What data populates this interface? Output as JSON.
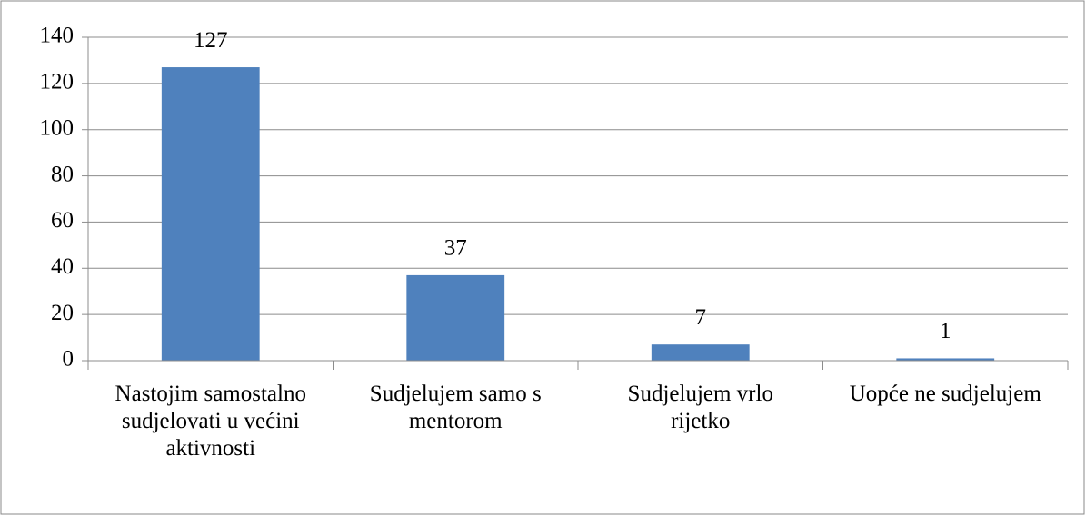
{
  "chart_data": {
    "type": "bar",
    "categories": [
      "Nastojim samostalno sudjelovati u većini aktivnosti",
      "Sudjelujem samo s mentorom",
      "Sudjelujem vrlo rijetko",
      "Uopće ne sudjelujem"
    ],
    "values": [
      127,
      37,
      7,
      1
    ],
    "color": "#4f81bd",
    "ylim": [
      0,
      140
    ],
    "yticks": [
      0,
      20,
      40,
      60,
      80,
      100,
      120,
      140
    ],
    "grid": true
  }
}
